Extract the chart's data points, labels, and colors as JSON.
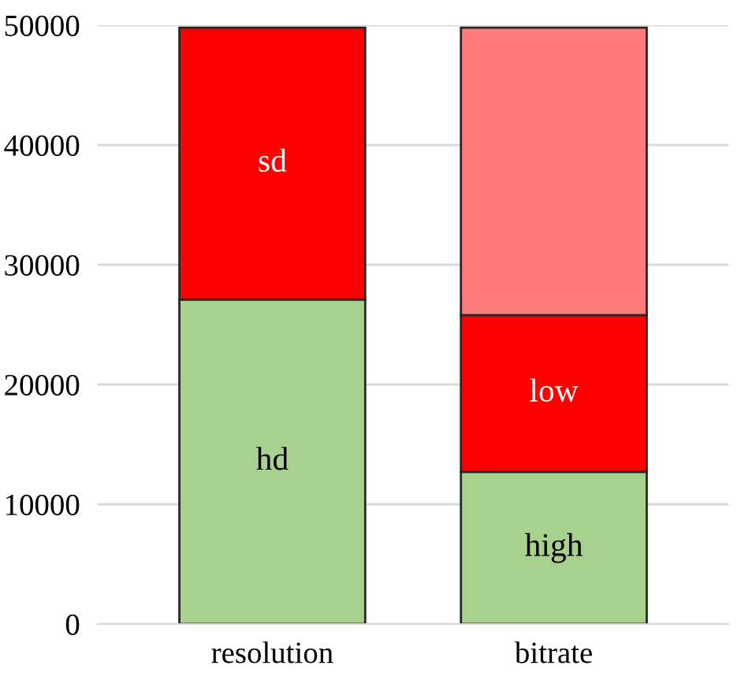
{
  "chart_data": {
    "type": "bar",
    "stacked": true,
    "categories": [
      "resolution",
      "bitrate"
    ],
    "series": [
      {
        "color": "#a9d18e",
        "values": [
          27100,
          12700
        ],
        "value_labels": [
          "hd",
          "high"
        ]
      },
      {
        "color": "#ff0000",
        "values": [
          22700,
          13100
        ],
        "value_labels": [
          "sd",
          "low"
        ]
      },
      {
        "color": "#ff7b7b",
        "values": [
          null,
          24000
        ]
      }
    ],
    "ylim": [
      0,
      50000
    ],
    "yticks": [
      0,
      10000,
      20000,
      30000,
      40000,
      50000
    ],
    "grid": "y"
  }
}
